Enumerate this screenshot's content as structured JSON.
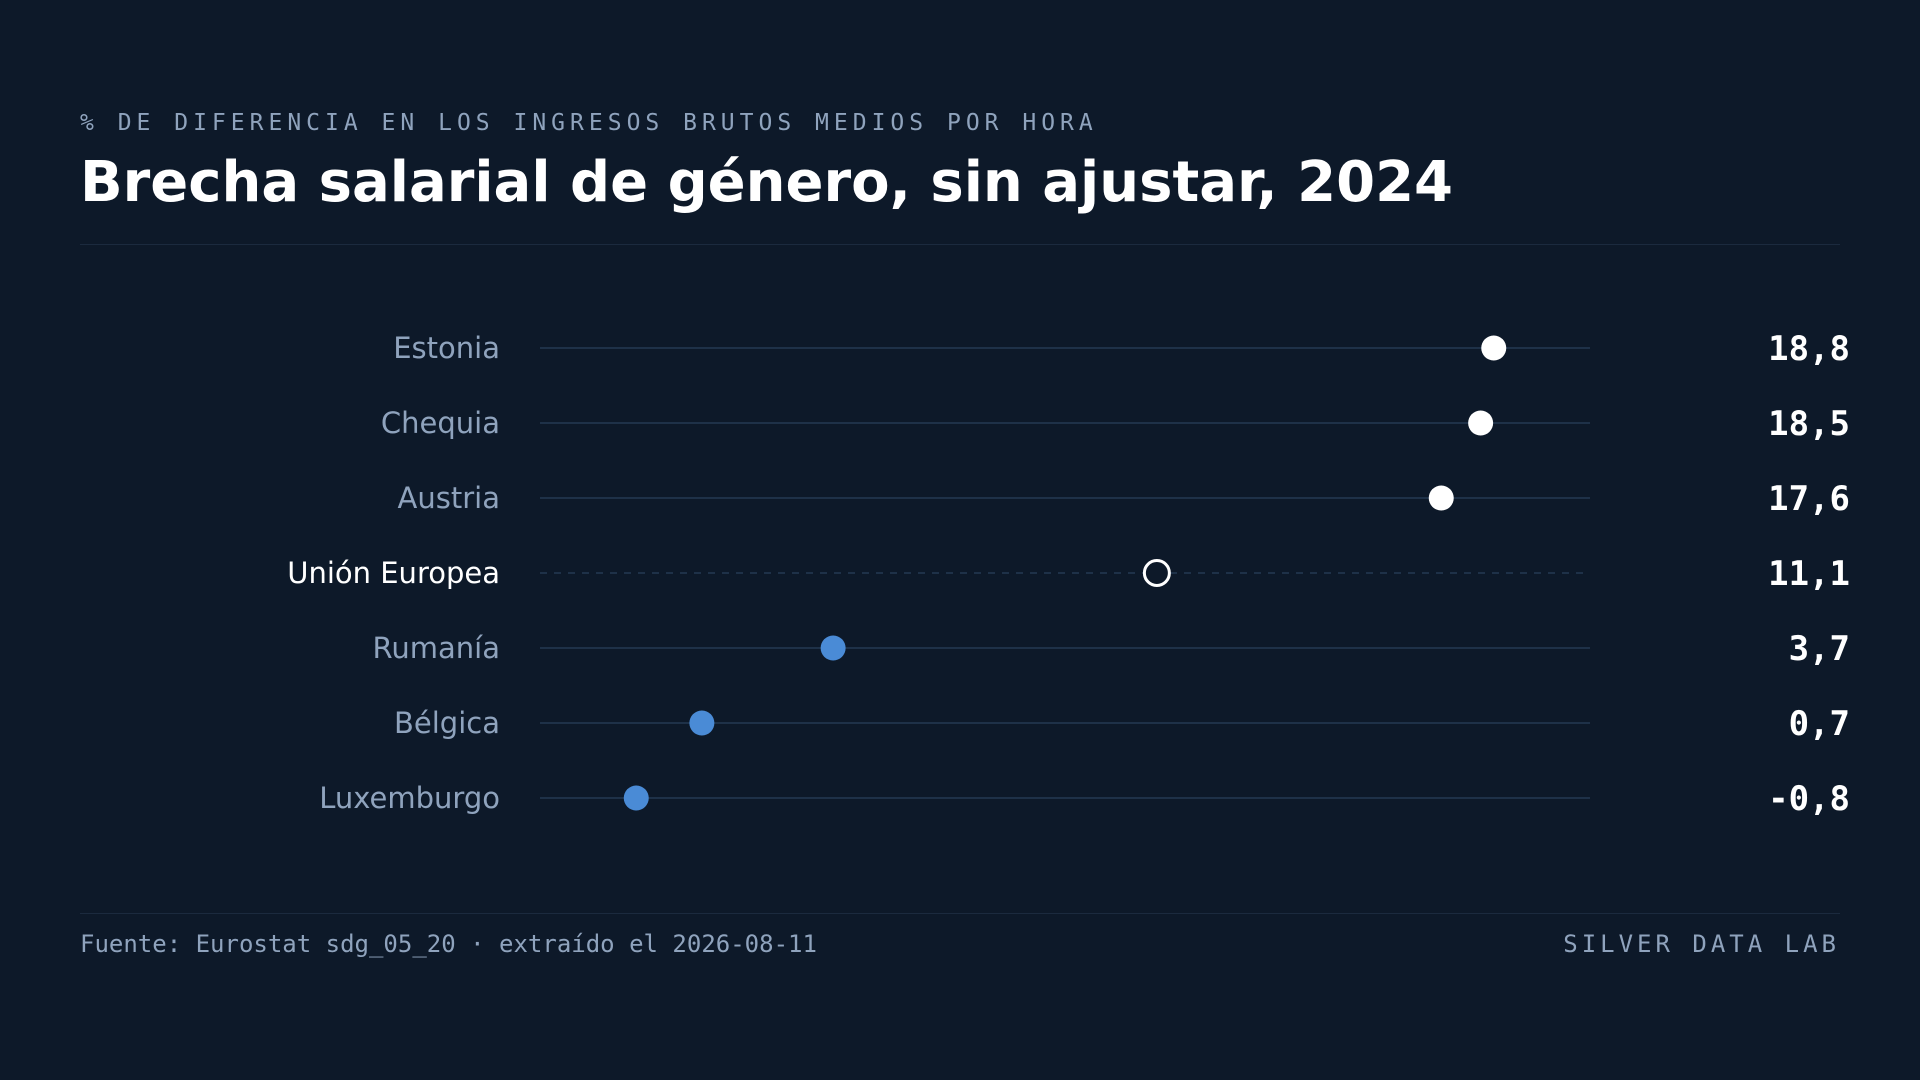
{
  "header": {
    "kicker": "% DE DIFERENCIA EN LOS INGRESOS BRUTOS MEDIOS POR HORA",
    "title": "Brecha salarial de género, sin ajustar, 2024"
  },
  "footer": {
    "source": "Fuente: Eurostat sdg_05_20 · extraído el 2026-08-11",
    "brand": "SILVER DATA LAB"
  },
  "colors": {
    "background": "#0d1929",
    "above_average": "#ffffff",
    "below_average": "#4a8bd6",
    "reference": "#ffffff",
    "track": "#1e3148",
    "muted_text": "#8fa3bd"
  },
  "chart_data": {
    "type": "scatter",
    "title": "Brecha salarial de género, sin ajustar, 2024",
    "subtitle": "% DE DIFERENCIA EN LOS INGRESOS BRUTOS MEDIOS POR HORA",
    "xlim": [
      -3,
      21
    ],
    "grid": false,
    "categories": [
      "Estonia",
      "Chequia",
      "Austria",
      "Unión Europea",
      "Rumanía",
      "Bélgica",
      "Luxemburgo"
    ],
    "values": [
      18.8,
      18.5,
      17.6,
      11.1,
      3.7,
      0.7,
      -0.8
    ],
    "value_labels": [
      "18,8",
      "18,5",
      "17,6",
      "11,1",
      "3,7",
      "0,7",
      "-0,8"
    ],
    "reference_category": "Unión Europea"
  }
}
